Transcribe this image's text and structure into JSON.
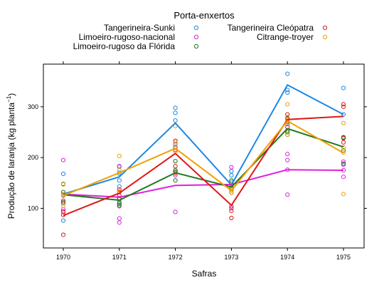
{
  "chart_data": {
    "type": "line",
    "legend_title": "Porta-enxertos",
    "xlabel": "Safras",
    "ylabel_main": "Produção de laranja (kg planta",
    "ylabel_sup": "−1",
    "ylabel_close": ")",
    "x": [
      "1970",
      "1971",
      "1972",
      "1973",
      "1974",
      "1975"
    ],
    "ylim": [
      22,
      384
    ],
    "yticks": [
      "100",
      "200",
      "300"
    ],
    "grid": false,
    "legend_position": "top",
    "series": [
      {
        "name": "Tangerineira-Sunki",
        "color": "#1e88e5",
        "means": [
          128,
          162,
          268,
          146,
          343,
          285
        ],
        "points": [
          [
            76,
            110,
            126,
            168
          ],
          [
            143,
            155,
            170,
            182
          ],
          [
            288,
            298,
            273,
            226
          ],
          [
            152,
            165,
            173,
            135
          ],
          [
            365,
            333,
            328,
            266
          ],
          [
            337,
            285,
            240,
            188
          ]
        ]
      },
      {
        "name": "Limoeiro-rugoso-nacional",
        "color": "#e020e0",
        "means": [
          128,
          122,
          145,
          147,
          176,
          175
        ],
        "points": [
          [
            195,
            98,
            93,
            125
          ],
          [
            183,
            104,
            80,
            72
          ],
          [
            93,
            215,
            165,
            170
          ],
          [
            181,
            148,
            100,
            140
          ],
          [
            207,
            127,
            195,
            176
          ],
          [
            192,
            162,
            175,
            186
          ]
        ]
      },
      {
        "name": "Limoeiro-rugoso da Flórida",
        "color": "#1f7a1f",
        "means": [
          127,
          116,
          170,
          142,
          257,
          221
        ],
        "points": [
          [
            132,
            128,
            112,
            148
          ],
          [
            118,
            109,
            106,
            112
          ],
          [
            193,
            155,
            172,
            175
          ],
          [
            155,
            131,
            148,
            138
          ],
          [
            245,
            250,
            253,
            277
          ],
          [
            240,
            239,
            214,
            188
          ]
        ]
      },
      {
        "name": "Tangerineira Cleópatra",
        "color": "#e01818",
        "means": [
          86,
          130,
          208,
          106,
          275,
          281
        ],
        "points": [
          [
            48,
            94,
            87,
            115
          ],
          [
            125,
            137,
            132,
            120
          ],
          [
            233,
            220,
            183,
            215
          ],
          [
            81,
            95,
            104,
            142
          ],
          [
            285,
            270,
            276,
            260
          ],
          [
            305,
            300,
            238,
            230
          ]
        ]
      },
      {
        "name": "Citrange-troyer",
        "color": "#f0a000",
        "means": [
          125,
          170,
          218,
          135,
          272,
          209
        ],
        "points": [
          [
            147,
            128,
            105,
            125
          ],
          [
            203,
            175,
            168,
            133
          ],
          [
            262,
            230,
            212,
            168
          ],
          [
            131,
            140,
            135,
            148
          ],
          [
            305,
            280,
            272,
            245
          ],
          [
            268,
            128,
            220,
            210
          ]
        ]
      }
    ]
  }
}
